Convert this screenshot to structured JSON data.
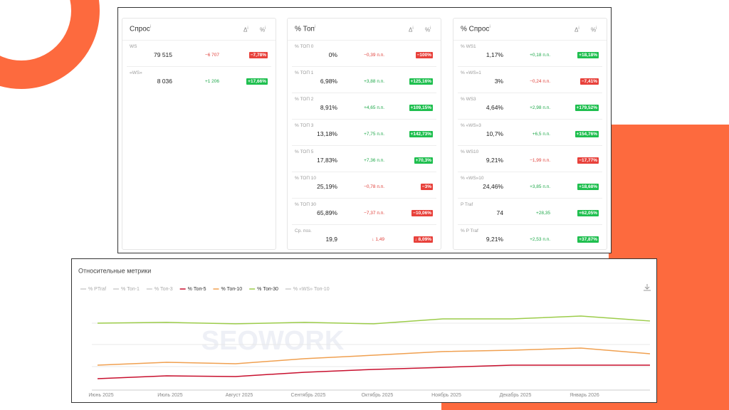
{
  "info_icon": "i",
  "cards": [
    {
      "title": "Спрос",
      "delta_header": "Δ",
      "pct_header": "%",
      "rows": [
        {
          "label": "WS",
          "value": "79 515",
          "delta": "−6 707",
          "pct": "−7,78%"
        },
        {
          "label": "«WS»",
          "value": "8 036",
          "delta": "+1 206",
          "pct": "+17,66%"
        }
      ]
    },
    {
      "title": "% Топ",
      "delta_header": "Δ",
      "pct_header": "%",
      "rows": [
        {
          "label": "% ТОП 0",
          "value": "0%",
          "delta": "−0,39 п.п.",
          "pct": "−100%"
        },
        {
          "label": "% ТОП 1",
          "value": "6,98%",
          "delta": "+3,88 п.п.",
          "pct": "+125,16%"
        },
        {
          "label": "% ТОП 2",
          "value": "8,91%",
          "delta": "+4,65 п.п.",
          "pct": "+109,15%"
        },
        {
          "label": "% ТОП 3",
          "value": "13,18%",
          "delta": "+7,75 п.п.",
          "pct": "+142,73%"
        },
        {
          "label": "% ТОП 5",
          "value": "17,83%",
          "delta": "+7,36 п.п.",
          "pct": "+70,3%"
        },
        {
          "label": "% ТОП 10",
          "value": "25,19%",
          "delta": "−0,78 п.п.",
          "pct": "−3%"
        },
        {
          "label": "% ТОП 30",
          "value": "65,89%",
          "delta": "−7,37 п.п.",
          "pct": "−10,06%"
        },
        {
          "label": "Ср. поз.",
          "value": "19,9",
          "delta": "↓ 1,49",
          "pct": "↓ 8,09%"
        }
      ]
    },
    {
      "title": "% Спрос",
      "delta_header": "Δ",
      "pct_header": "%",
      "rows": [
        {
          "label": "% WS1",
          "value": "1,17%",
          "delta": "+0,18 п.п.",
          "pct": "+18,18%"
        },
        {
          "label": "% «WS»1",
          "value": "3%",
          "delta": "−0,24 п.п.",
          "pct": "−7,41%"
        },
        {
          "label": "% WS3",
          "value": "4,64%",
          "delta": "+2,98 п.п.",
          "pct": "+179,52%"
        },
        {
          "label": "% «WS»3",
          "value": "10,7%",
          "delta": "+6,5 п.п.",
          "pct": "+154,76%"
        },
        {
          "label": "% WS10",
          "value": "9,21%",
          "delta": "−1,99 п.п.",
          "pct": "−17,77%"
        },
        {
          "label": "% «WS»10",
          "value": "24,46%",
          "delta": "+3,85 п.п.",
          "pct": "+18,68%"
        },
        {
          "label": "P Traf",
          "value": "74",
          "delta": "+28,35",
          "pct": "+62,05%"
        },
        {
          "label": "% P Traf",
          "value": "9,21%",
          "delta": "+2,53 п.п.",
          "pct": "+37,87%"
        }
      ]
    }
  ],
  "chart_data": {
    "type": "line",
    "title": "Относительные метрики",
    "watermark": "SEOWORK",
    "categories": [
      "Июнь 2025",
      "Июль 2025",
      "Август 2025",
      "Сентябрь 2025",
      "Октябрь 2025",
      "Ноябрь 2025",
      "Декабрь 2025",
      "Январь 2026",
      null
    ],
    "ylim": [
      0,
      70
    ],
    "series": [
      {
        "name": "% PTraf",
        "color": "#cccccc",
        "hidden": true,
        "values": [
          null,
          null,
          null,
          null,
          null,
          null,
          null,
          null,
          null
        ]
      },
      {
        "name": "% Топ-1",
        "color": "#cccccc",
        "hidden": true,
        "values": [
          null,
          null,
          null,
          null,
          null,
          null,
          null,
          null,
          null
        ]
      },
      {
        "name": "% Топ-3",
        "color": "#cccccc",
        "hidden": true,
        "values": [
          null,
          null,
          null,
          null,
          null,
          null,
          null,
          null,
          null
        ]
      },
      {
        "name": "% Топ-5",
        "color": "#c8102e",
        "values": [
          8.8,
          11.0,
          10.5,
          13.8,
          16.0,
          17.6,
          19.3,
          19.3,
          19.3
        ]
      },
      {
        "name": "% Топ-10",
        "color": "#f0a050",
        "values": [
          19.3,
          21.5,
          20.4,
          24.3,
          27.0,
          29.8,
          30.9,
          32.5,
          28.1
        ]
      },
      {
        "name": "% Топ-30",
        "color": "#9ccc4a",
        "values": [
          51.8,
          52.4,
          51.3,
          52.4,
          51.3,
          55.1,
          55.1,
          57.3,
          53.5
        ]
      },
      {
        "name": "% «WS» Топ-10",
        "color": "#cccccc",
        "hidden": true,
        "values": [
          null,
          null,
          null,
          null,
          null,
          null,
          null,
          null,
          null
        ]
      }
    ]
  }
}
